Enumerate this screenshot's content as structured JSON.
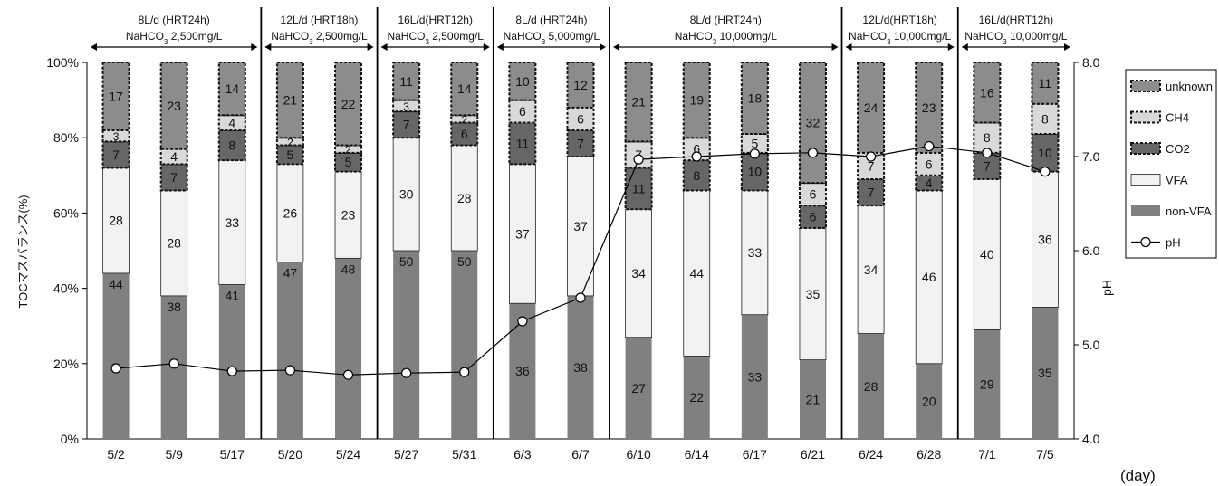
{
  "chart_data": {
    "type": "bar",
    "stacked": true,
    "categories": [
      "5/2",
      "5/9",
      "5/17",
      "5/20",
      "5/24",
      "5/27",
      "5/31",
      "6/3",
      "6/7",
      "6/10",
      "6/14",
      "6/17",
      "6/21",
      "6/24",
      "6/28",
      "7/1",
      "7/5"
    ],
    "xlabel": "(day)",
    "ylabel": "TOCマスバランス(%)",
    "y2label": "pH",
    "ylim": [
      0,
      100
    ],
    "y2lim": [
      4.0,
      8.0
    ],
    "yticks": [
      "0%",
      "20%",
      "40%",
      "60%",
      "80%",
      "100%"
    ],
    "y2ticks": [
      "4.0",
      "5.0",
      "6.0",
      "7.0",
      "8.0"
    ],
    "series": [
      {
        "name": "non-VFA",
        "color": "#808080",
        "values": [
          44,
          38,
          41,
          47,
          48,
          50,
          50,
          36,
          38,
          27,
          22,
          33,
          21,
          28,
          20,
          29,
          35
        ]
      },
      {
        "name": "VFA",
        "color": "#f2f2f2",
        "values": [
          28,
          28,
          33,
          26,
          23,
          30,
          28,
          37,
          37,
          34,
          44,
          33,
          35,
          34,
          46,
          40,
          36
        ]
      },
      {
        "name": "CO2",
        "color": "#666666",
        "values": [
          7,
          7,
          8,
          5,
          5,
          7,
          6,
          11,
          7,
          11,
          8,
          10,
          6,
          7,
          4,
          7,
          10
        ]
      },
      {
        "name": "CH4",
        "color": "#d9d9d9",
        "values": [
          3,
          4,
          4,
          2,
          2,
          3,
          2,
          6,
          6,
          7,
          6,
          5,
          6,
          7,
          6,
          8,
          8
        ]
      },
      {
        "name": "unknown",
        "color": "#8c8c8c",
        "values": [
          17,
          23,
          14,
          21,
          22,
          11,
          14,
          10,
          12,
          21,
          19,
          18,
          32,
          24,
          23,
          16,
          11
        ]
      }
    ],
    "ph": {
      "name": "pH",
      "values": [
        4.75,
        4.8,
        4.72,
        4.73,
        4.68,
        4.7,
        4.71,
        5.25,
        5.5,
        6.97,
        7.0,
        7.03,
        7.04,
        7.0,
        7.11,
        7.04,
        6.84
      ]
    },
    "periods": [
      {
        "line1": "8L/d (HRT24h)",
        "line2": "NaHCO",
        "sub": "3",
        "line2b": " 2,500mg/L",
        "start": 0,
        "end": 2
      },
      {
        "line1": "12L/d (HRT18h)",
        "line2": "NaHCO",
        "sub": "3",
        "line2b": " 2,500mg/L",
        "start": 3,
        "end": 4
      },
      {
        "line1": "16L/d(HRT12h)",
        "line2": "NaHCO",
        "sub": "3",
        "line2b": " 2,500mg/L",
        "start": 5,
        "end": 6
      },
      {
        "line1": "8L/d (HRT24h)",
        "line2": "NaHCO",
        "sub": "3",
        "line2b": " 5,000mg/L",
        "start": 7,
        "end": 8
      },
      {
        "line1": "8L/d (HRT24h)",
        "line2": "NaHCO",
        "sub": "3",
        "line2b": " 10,000mg/L",
        "start": 9,
        "end": 12
      },
      {
        "line1": "12L/d(HRT18h)",
        "line2": "NaHCO",
        "sub": "3",
        "line2b": " 10,000mg/L",
        "start": 13,
        "end": 14
      },
      {
        "line1": "16L/d(HRT12h)",
        "line2": "NaHCO",
        "sub": "3",
        "line2b": " 10,000mg/L",
        "start": 15,
        "end": 16
      }
    ],
    "legend": [
      "unknown",
      "CH4",
      "CO2",
      "VFA",
      "non-VFA",
      "pH"
    ],
    "legend_position": "right"
  }
}
